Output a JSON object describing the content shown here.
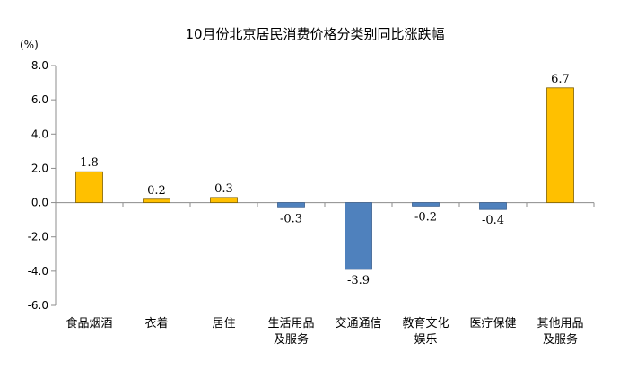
{
  "chart_data": {
    "type": "bar",
    "title": "10月份北京居民消费价格分类别同比涨跌幅",
    "ylabel": "(%)",
    "xlabel": "",
    "ylim": [
      -6.0,
      8.0
    ],
    "yticks": [
      8.0,
      6.0,
      4.0,
      2.0,
      0.0,
      -2.0,
      -4.0,
      -6.0
    ],
    "ytick_labels": [
      "8.0",
      "6.0",
      "4.0",
      "2.0",
      "0.0",
      "-2.0",
      "-4.0",
      "-6.0"
    ],
    "categories": [
      [
        "食品烟酒"
      ],
      [
        "衣着"
      ],
      [
        "居住"
      ],
      [
        "生活用品",
        "及服务"
      ],
      [
        "交通通信"
      ],
      [
        "教育文化",
        "娱乐"
      ],
      [
        "医疗保健"
      ],
      [
        "其他用品",
        "及服务"
      ]
    ],
    "values": [
      1.8,
      0.2,
      0.3,
      -0.3,
      -3.9,
      -0.2,
      -0.4,
      6.7
    ],
    "value_labels": [
      "1.8",
      "0.2",
      "0.3",
      "-0.3",
      "-3.9",
      "-0.2",
      "-0.4",
      "6.7"
    ],
    "colors": {
      "positive": "#FFC000",
      "negative": "#4F81BD",
      "axis": "#8C8C8C",
      "bar_edge": "#7F6000"
    },
    "grid": false,
    "legend": "none"
  }
}
